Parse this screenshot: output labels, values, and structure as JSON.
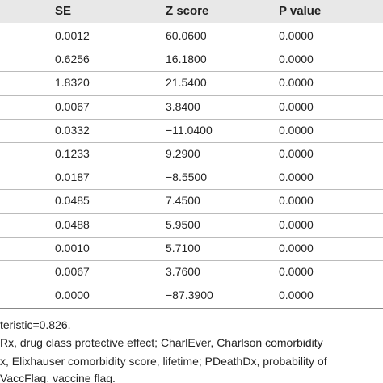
{
  "table": {
    "header": [
      "SE",
      "Z score",
      "P value"
    ],
    "rows": [
      [
        "0.0012",
        "60.0600",
        "0.0000"
      ],
      [
        "0.6256",
        "16.1800",
        "0.0000"
      ],
      [
        "1.8320",
        "21.5400",
        "0.0000"
      ],
      [
        "0.0067",
        "3.8400",
        "0.0000"
      ],
      [
        "0.0332",
        "−11.0400",
        "0.0000"
      ],
      [
        "0.1233",
        "9.2900",
        "0.0000"
      ],
      [
        "0.0187",
        "−8.5500",
        "0.0000"
      ],
      [
        "0.0485",
        "7.4500",
        "0.0000"
      ],
      [
        "0.0488",
        "5.9500",
        "0.0000"
      ],
      [
        "0.0010",
        "5.7100",
        "0.0000"
      ],
      [
        "0.0067",
        "3.7600",
        "0.0000"
      ],
      [
        "0.0000",
        "−87.3900",
        "0.0000"
      ]
    ]
  },
  "footnotes": [
    "teristic=0.826.",
    "Rx, drug class protective effect; CharlEver, Charlson comorbidity",
    "x, Elixhauser comorbidity score, lifetime; PDeathDx, probability of",
    "VaccFlag, vaccine flag."
  ]
}
